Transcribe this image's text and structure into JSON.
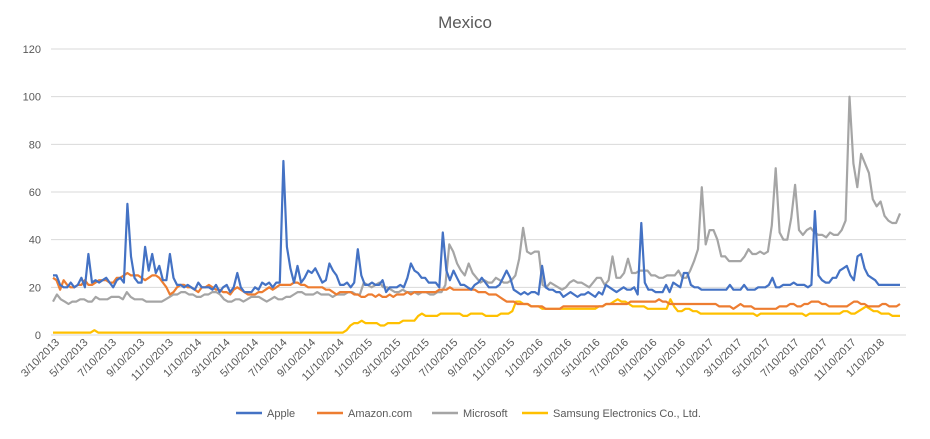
{
  "chart_data": {
    "type": "line",
    "title": "Mexico",
    "xlabel": "",
    "ylabel": "",
    "ylim": [
      0,
      120
    ],
    "yticks": [
      0,
      20,
      40,
      60,
      80,
      100,
      120
    ],
    "x_tick_labels": [
      "3/10/2013",
      "5/10/2013",
      "7/10/2013",
      "9/10/2013",
      "11/10/2013",
      "1/10/2014",
      "3/10/2014",
      "5/10/2014",
      "7/10/2014",
      "9/10/2014",
      "11/10/2014",
      "1/10/2015",
      "3/10/2015",
      "5/10/2015",
      "7/10/2015",
      "9/10/2015",
      "11/10/2015",
      "1/10/2016",
      "3/10/2016",
      "5/10/2016",
      "7/10/2016",
      "9/10/2016",
      "11/10/2016",
      "1/10/2017",
      "3/10/2017",
      "5/10/2017",
      "7/10/2017",
      "9/10/2017",
      "11/10/2017",
      "1/10/2018"
    ],
    "x_unit": "weekly observations, 3/10/2013 to 3/2018",
    "grid": "horizontal",
    "legend": "bottom",
    "series": [
      {
        "name": "Apple",
        "color": "#4472C4",
        "values": [
          25,
          25,
          21,
          20,
          20,
          22,
          20,
          21,
          24,
          20,
          34,
          22,
          23,
          22,
          23,
          24,
          22,
          20,
          23,
          24,
          22,
          55,
          33,
          24,
          22,
          22,
          37,
          27,
          34,
          26,
          29,
          23,
          23,
          34,
          24,
          21,
          21,
          20,
          21,
          20,
          19,
          22,
          20,
          20,
          20,
          19,
          21,
          18,
          20,
          21,
          18,
          20,
          26,
          20,
          18,
          18,
          18,
          20,
          19,
          22,
          21,
          22,
          20,
          22,
          22,
          73,
          37,
          28,
          22,
          29,
          22,
          24,
          27,
          26,
          28,
          25,
          22,
          23,
          30,
          27,
          25,
          21,
          21,
          22,
          20,
          22,
          36,
          25,
          21,
          21,
          22,
          21,
          21,
          23,
          18,
          20,
          20,
          20,
          21,
          20,
          24,
          30,
          27,
          26,
          24,
          24,
          22,
          22,
          22,
          20,
          43,
          27,
          23,
          27,
          24,
          21,
          21,
          20,
          19,
          21,
          22,
          24,
          22,
          20,
          20,
          20,
          21,
          24,
          27,
          24,
          19,
          18,
          17,
          18,
          17,
          18,
          18,
          17,
          29,
          20,
          19,
          19,
          18,
          18,
          16,
          17,
          18,
          17,
          16,
          17,
          17,
          18,
          17,
          16,
          18,
          17,
          21,
          20,
          19,
          18,
          19,
          20,
          19,
          19,
          20,
          17,
          47,
          22,
          19,
          19,
          18,
          18,
          18,
          21,
          18,
          22,
          21,
          20,
          26,
          26,
          21,
          20,
          20,
          19,
          19,
          19,
          19,
          19,
          19,
          19,
          19,
          21,
          19,
          19,
          19,
          21,
          19,
          19,
          19,
          20,
          20,
          20,
          21,
          24,
          20,
          20,
          21,
          21,
          21,
          22,
          21,
          21,
          21,
          20,
          21,
          52,
          25,
          23,
          22,
          22,
          24,
          24,
          27,
          28,
          29,
          25,
          23,
          33,
          34,
          28,
          25,
          24,
          23,
          21,
          21,
          21,
          21,
          21,
          21,
          21
        ]
      },
      {
        "name": "Amazon.com",
        "color": "#ED7D31",
        "values": [
          24,
          23,
          19,
          23,
          21,
          20,
          20,
          21,
          21,
          23,
          21,
          21,
          22,
          23,
          23,
          23,
          22,
          22,
          24,
          24,
          25,
          26,
          25,
          25,
          25,
          24,
          23,
          24,
          25,
          25,
          24,
          22,
          20,
          17,
          18,
          20,
          21,
          21,
          20,
          20,
          19,
          18,
          20,
          20,
          21,
          20,
          19,
          19,
          18,
          18,
          17,
          19,
          20,
          19,
          18,
          17,
          17,
          17,
          18,
          18,
          19,
          20,
          19,
          20,
          21,
          21,
          21,
          21,
          22,
          22,
          21,
          21,
          20,
          20,
          20,
          20,
          20,
          19,
          19,
          18,
          17,
          18,
          18,
          18,
          18,
          17,
          17,
          16,
          16,
          17,
          17,
          16,
          17,
          16,
          16,
          17,
          16,
          17,
          17,
          17,
          18,
          17,
          18,
          18,
          18,
          18,
          18,
          18,
          18,
          19,
          19,
          19,
          20,
          19,
          19,
          19,
          19,
          19,
          19,
          19,
          18,
          18,
          18,
          17,
          17,
          17,
          16,
          15,
          14,
          14,
          14,
          13,
          13,
          13,
          13,
          12,
          12,
          12,
          12,
          11,
          11,
          11,
          11,
          11,
          12,
          12,
          12,
          12,
          12,
          12,
          12,
          12,
          12,
          12,
          12,
          12,
          13,
          13,
          13,
          13,
          13,
          13,
          13,
          14,
          14,
          14,
          14,
          14,
          14,
          14,
          14,
          15,
          14,
          14,
          13,
          13,
          13,
          13,
          13,
          13,
          13,
          13,
          13,
          13,
          13,
          13,
          13,
          13,
          12,
          12,
          12,
          12,
          11,
          12,
          13,
          12,
          12,
          12,
          11,
          11,
          11,
          11,
          11,
          11,
          11,
          12,
          12,
          12,
          13,
          13,
          12,
          12,
          13,
          13,
          14,
          14,
          14,
          13,
          13,
          12,
          12,
          12,
          12,
          12,
          12,
          13,
          14,
          14,
          13,
          13,
          12,
          12,
          12,
          12,
          13,
          13,
          12,
          12,
          12,
          13
        ]
      },
      {
        "name": "Microsoft",
        "color": "#A5A5A5",
        "values": [
          14,
          17,
          15,
          14,
          13,
          14,
          14,
          15,
          15,
          14,
          14,
          16,
          15,
          15,
          15,
          16,
          16,
          16,
          15,
          18,
          16,
          15,
          15,
          15,
          14,
          14,
          14,
          14,
          14,
          15,
          16,
          17,
          17,
          18,
          18,
          17,
          17,
          16,
          16,
          17,
          17,
          18,
          18,
          17,
          15,
          14,
          14,
          15,
          15,
          14,
          15,
          16,
          16,
          16,
          15,
          14,
          15,
          16,
          15,
          15,
          16,
          16,
          17,
          18,
          18,
          17,
          17,
          17,
          18,
          17,
          17,
          17,
          16,
          17,
          17,
          17,
          18,
          18,
          17,
          17,
          22,
          21,
          20,
          21,
          22,
          20,
          20,
          19,
          18,
          18,
          19,
          18,
          18,
          18,
          17,
          18,
          18,
          17,
          17,
          18,
          18,
          21,
          38,
          35,
          30,
          27,
          25,
          30,
          26,
          24,
          22,
          23,
          22,
          22,
          24,
          23,
          22,
          22,
          23,
          25,
          32,
          45,
          35,
          34,
          35,
          35,
          21,
          20,
          22,
          21,
          20,
          19,
          20,
          22,
          23,
          22,
          22,
          21,
          20,
          22,
          24,
          24,
          21,
          23,
          33,
          24,
          24,
          26,
          32,
          26,
          26,
          27,
          27,
          27,
          25,
          25,
          24,
          24,
          25,
          25,
          25,
          27,
          24,
          24,
          27,
          31,
          36,
          62,
          38,
          44,
          44,
          40,
          33,
          33,
          31,
          31,
          31,
          31,
          33,
          36,
          34,
          34,
          35,
          34,
          35,
          46,
          70,
          43,
          40,
          40,
          49,
          63,
          44,
          42,
          44,
          45,
          43,
          42,
          42,
          41,
          43,
          42,
          42,
          44,
          48,
          100,
          72,
          62,
          76,
          72,
          68,
          57,
          54,
          56,
          50,
          48,
          47,
          47,
          51
        ]
      },
      {
        "name": "Samsung Electronics Co., Ltd.",
        "color": "#FFC000",
        "values": [
          1,
          1,
          1,
          1,
          1,
          1,
          1,
          1,
          1,
          1,
          1,
          2,
          1,
          1,
          1,
          1,
          1,
          1,
          1,
          1,
          1,
          1,
          1,
          1,
          1,
          1,
          1,
          1,
          1,
          1,
          1,
          1,
          1,
          1,
          1,
          1,
          1,
          1,
          1,
          1,
          1,
          1,
          1,
          1,
          1,
          1,
          1,
          1,
          1,
          1,
          1,
          1,
          1,
          1,
          1,
          1,
          1,
          1,
          1,
          1,
          1,
          1,
          1,
          1,
          1,
          1,
          1,
          1,
          1,
          1,
          1,
          1,
          1,
          1,
          1,
          1,
          1,
          1,
          2,
          4,
          5,
          5,
          6,
          5,
          5,
          5,
          5,
          4,
          4,
          5,
          5,
          5,
          5,
          6,
          6,
          6,
          6,
          8,
          9,
          8,
          8,
          8,
          8,
          9,
          9,
          9,
          9,
          9,
          9,
          8,
          8,
          9,
          9,
          9,
          9,
          8,
          8,
          8,
          8,
          9,
          9,
          9,
          10,
          14,
          14,
          13,
          13,
          12,
          12,
          12,
          11,
          11,
          11,
          11,
          11,
          11,
          11,
          11,
          11,
          11,
          11,
          11,
          11,
          11,
          11,
          12,
          12,
          13,
          13,
          14,
          15,
          14,
          14,
          13,
          12,
          12,
          12,
          12,
          11,
          11,
          11,
          11,
          11,
          11,
          15,
          12,
          10,
          10,
          11,
          11,
          10,
          10,
          9,
          9,
          9,
          9,
          9,
          9,
          9,
          9,
          9,
          9,
          9,
          9,
          9,
          9,
          9,
          8,
          9,
          9,
          9,
          9,
          9,
          9,
          9,
          9,
          9,
          9,
          9,
          9,
          8,
          9,
          9,
          9,
          9,
          9,
          9,
          9,
          9,
          9,
          10,
          10,
          9,
          9,
          10,
          11,
          12,
          11,
          10,
          10,
          9,
          9,
          9,
          8,
          8,
          8
        ]
      }
    ]
  }
}
